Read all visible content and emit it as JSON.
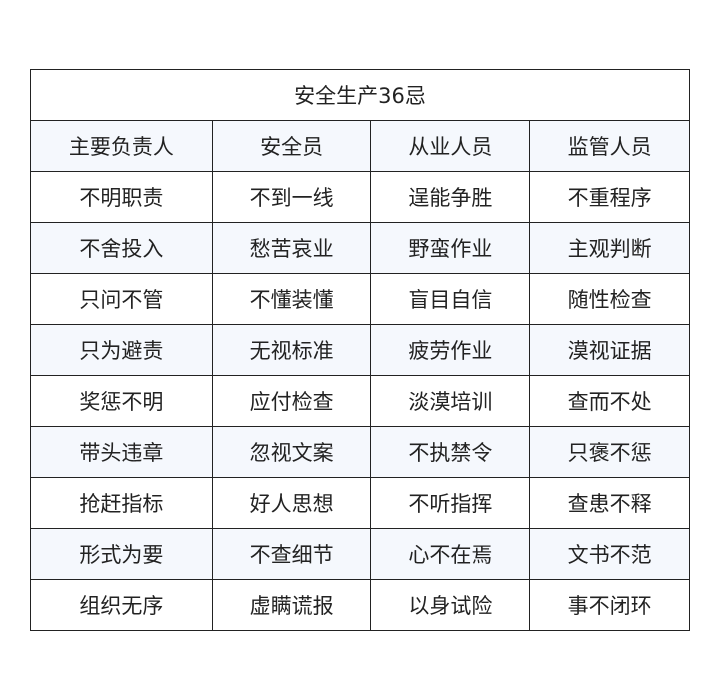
{
  "title": "安全生产36忌",
  "headers": [
    "主要负责人",
    "安全员",
    "从业人员",
    "监管人员"
  ],
  "rows": [
    [
      "不明职责",
      "不到一线",
      "逞能争胜",
      "不重程序"
    ],
    [
      "不舍投入",
      "愁苦哀业",
      "野蛮作业",
      "主观判断"
    ],
    [
      "只问不管",
      "不懂装懂",
      "盲目自信",
      "随性检查"
    ],
    [
      "只为避责",
      "无视标准",
      "疲劳作业",
      "漠视证据"
    ],
    [
      "奖惩不明",
      "应付检查",
      "淡漠培训",
      "查而不处"
    ],
    [
      "带头违章",
      "忽视文案",
      "不执禁令",
      "只褒不惩"
    ],
    [
      "抢赶指标",
      "好人思想",
      "不听指挥",
      "查患不释"
    ],
    [
      "形式为要",
      "不查细节",
      "心不在焉",
      "文书不范"
    ],
    [
      "组织无序",
      "虚瞒谎报",
      "以身试险",
      "事不闭环"
    ]
  ],
  "colors": {
    "border": "#222222",
    "row_tint": "#f5f8fd",
    "text": "#222222"
  }
}
